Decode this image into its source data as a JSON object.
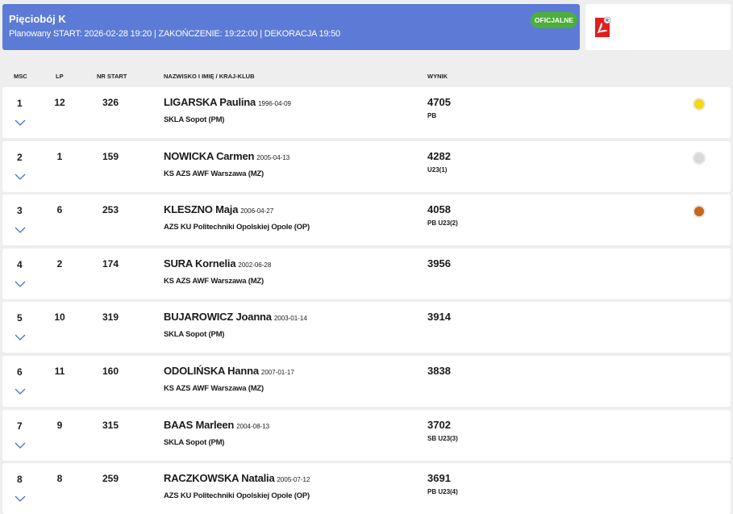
{
  "header": {
    "title": "Pięciobój K",
    "subtitle": "Planowany START: 2026-02-28 19:20 | ZAKOŃCZENIE: 19:22:00 | DEKORACJA 19:50",
    "status_badge": "OFICJALNE"
  },
  "columns": {
    "msc": "MSC",
    "lp": "LP",
    "nr_start": "NR START",
    "name": "NAZWISKO I IMIĘ / KRAJ-KLUB",
    "result": "WYNIK"
  },
  "colors": {
    "header": "#5b7bd6",
    "badge": "#4caf3a",
    "gold": "#f5d90a",
    "silver": "#d9d9d9",
    "bronze": "#c8651b",
    "chevron": "#4a6fd0"
  },
  "rows": [
    {
      "msc": "1",
      "lp": "12",
      "nr": "326",
      "name": "LIGARSKA Paulina",
      "dob": "1996-04-09",
      "club": "SKLA Sopot (PM)",
      "result": "4705",
      "note": "PB",
      "medal": "gold"
    },
    {
      "msc": "2",
      "lp": "1",
      "nr": "159",
      "name": "NOWICKA Carmen",
      "dob": "2005-04-13",
      "club": "KS AZS AWF Warszawa (MZ)",
      "result": "4282",
      "note": "U23(1)",
      "medal": "silver"
    },
    {
      "msc": "3",
      "lp": "6",
      "nr": "253",
      "name": "KLESZNO Maja",
      "dob": "2006-04-27",
      "club": "AZS KU Politechniki Opolskiej Opole (OP)",
      "result": "4058",
      "note": "PB U23(2)",
      "medal": "bronze"
    },
    {
      "msc": "4",
      "lp": "2",
      "nr": "174",
      "name": "SURA Kornelia",
      "dob": "2002-06-28",
      "club": "KS AZS AWF Warszawa (MZ)",
      "result": "3956",
      "note": "",
      "medal": ""
    },
    {
      "msc": "5",
      "lp": "10",
      "nr": "319",
      "name": "BUJAROWICZ Joanna",
      "dob": "2003-01-14",
      "club": "SKLA Sopot (PM)",
      "result": "3914",
      "note": "",
      "medal": ""
    },
    {
      "msc": "6",
      "lp": "11",
      "nr": "160",
      "name": "ODOLIŃSKA Hanna",
      "dob": "2007-01-17",
      "club": "KS AZS AWF Warszawa (MZ)",
      "result": "3838",
      "note": "",
      "medal": ""
    },
    {
      "msc": "7",
      "lp": "9",
      "nr": "315",
      "name": "BAAS Marleen",
      "dob": "2004-08-13",
      "club": "SKLA Sopot (PM)",
      "result": "3702",
      "note": "SB U23(3)",
      "medal": ""
    },
    {
      "msc": "8",
      "lp": "8",
      "nr": "259",
      "name": "RACZKOWSKA Natalia",
      "dob": "2005-07-12",
      "club": "AZS KU Politechniki Opolskiej Opole (OP)",
      "result": "3691",
      "note": "PB U23(4)",
      "medal": ""
    }
  ]
}
